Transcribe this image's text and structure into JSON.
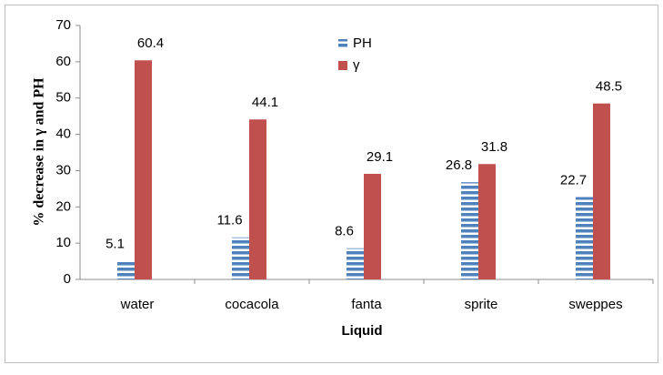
{
  "chart_data": {
    "type": "bar",
    "x_label": "Liquid",
    "y_label": "% decrease in γ and PH",
    "categories": [
      "water",
      "cocacola",
      "fanta",
      "sprite",
      "sweppes"
    ],
    "series": [
      {
        "name": "PH",
        "color": "#4f81bd",
        "hatch": "horizontal",
        "values": [
          5.1,
          11.6,
          8.6,
          26.8,
          22.7
        ]
      },
      {
        "name": "γ",
        "color": "#c0504d",
        "values": [
          60.4,
          44.1,
          29.1,
          31.8,
          48.5
        ]
      }
    ],
    "ylim": [
      0,
      70
    ],
    "yticks": [
      0,
      10,
      20,
      30,
      40,
      50,
      60,
      70
    ],
    "grid": false,
    "legend": "top"
  }
}
